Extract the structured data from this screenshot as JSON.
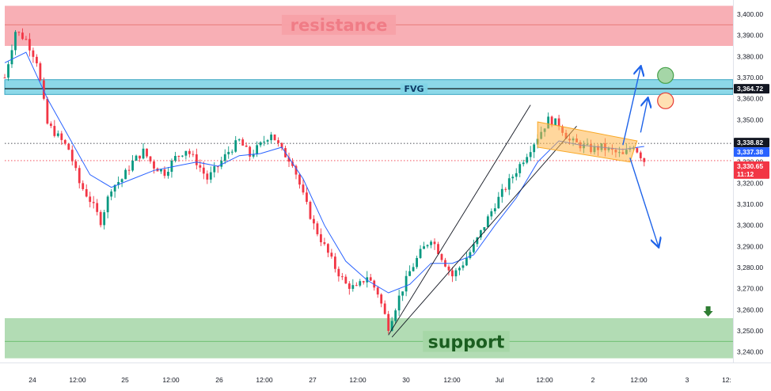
{
  "chart_data": {
    "type": "candlestick",
    "y_ticks": [
      3240,
      3250,
      3260,
      3270,
      3280,
      3290,
      3300,
      3310,
      3320,
      3330,
      3340,
      3350,
      3360,
      3370,
      3380,
      3390,
      3400
    ],
    "ylim": [
      3235,
      3406
    ],
    "x_ticks": [
      "24",
      "12:00",
      "25",
      "12:00",
      "26",
      "12:00",
      "27",
      "12:00",
      "30",
      "12:00",
      "Jul",
      "12:00",
      "2",
      "12:00",
      "3",
      "12:"
    ],
    "price_badges": [
      {
        "value": "3,364.72",
        "color": "#131722",
        "text_color": "#ffffff"
      },
      {
        "value": "3,338.82",
        "color": "#131722",
        "text_color": "#ffffff"
      },
      {
        "value": "3,337.38",
        "color": "#2962ff",
        "text_color": "#ffffff"
      },
      {
        "value": "3,330.65",
        "sub": "11:12",
        "color": "#f23645",
        "text_color": "#ffffff"
      }
    ],
    "zones": [
      {
        "label": "resistance",
        "from": 3385,
        "to": 3404,
        "mid": 3395,
        "color": "#f7a1a8",
        "text_color": "#f07c86"
      },
      {
        "label": "FVG",
        "from": 3362,
        "to": 3369,
        "mid": 3364.72,
        "color": "#7fd4e6",
        "text_color": "#0d3b66"
      },
      {
        "label": "support",
        "from": 3237,
        "to": 3256,
        "mid": 3245,
        "color": "#a5d6a7",
        "text_color": "#1b5e20"
      }
    ],
    "price_path": [
      [
        0,
        3370
      ],
      [
        3,
        3392
      ],
      [
        6,
        3388
      ],
      [
        9,
        3378
      ],
      [
        12,
        3348
      ],
      [
        15,
        3342
      ],
      [
        18,
        3336
      ],
      [
        21,
        3320
      ],
      [
        24,
        3312
      ],
      [
        27,
        3302
      ],
      [
        30,
        3318
      ],
      [
        33,
        3322
      ],
      [
        36,
        3330
      ],
      [
        39,
        3335
      ],
      [
        42,
        3328
      ],
      [
        45,
        3325
      ],
      [
        48,
        3332
      ],
      [
        51,
        3336
      ],
      [
        54,
        3330
      ],
      [
        57,
        3322
      ],
      [
        60,
        3328
      ],
      [
        63,
        3335
      ],
      [
        66,
        3340
      ],
      [
        69,
        3333
      ],
      [
        72,
        3338
      ],
      [
        75,
        3344
      ],
      [
        78,
        3335
      ],
      [
        81,
        3330
      ],
      [
        84,
        3314
      ],
      [
        87,
        3300
      ],
      [
        90,
        3290
      ],
      [
        93,
        3280
      ],
      [
        96,
        3272
      ],
      [
        99,
        3270
      ],
      [
        102,
        3276
      ],
      [
        105,
        3268
      ],
      [
        108,
        3252
      ],
      [
        111,
        3266
      ],
      [
        114,
        3278
      ],
      [
        117,
        3287
      ],
      [
        120,
        3294
      ],
      [
        123,
        3285
      ],
      [
        126,
        3276
      ],
      [
        129,
        3282
      ],
      [
        132,
        3290
      ],
      [
        135,
        3300
      ],
      [
        138,
        3310
      ],
      [
        141,
        3318
      ],
      [
        144,
        3326
      ],
      [
        147,
        3334
      ],
      [
        150,
        3342
      ],
      [
        153,
        3350
      ],
      [
        156,
        3348
      ],
      [
        159,
        3340
      ],
      [
        162,
        3338
      ],
      [
        165,
        3336
      ],
      [
        168,
        3337
      ],
      [
        171,
        3335
      ],
      [
        174,
        3333
      ],
      [
        177,
        3338
      ],
      [
        180,
        3330.65
      ]
    ],
    "ma_path": [
      [
        0,
        3377
      ],
      [
        6,
        3382
      ],
      [
        12,
        3360
      ],
      [
        18,
        3342
      ],
      [
        24,
        3324
      ],
      [
        30,
        3318
      ],
      [
        36,
        3322
      ],
      [
        42,
        3326
      ],
      [
        48,
        3328
      ],
      [
        54,
        3330
      ],
      [
        60,
        3328
      ],
      [
        66,
        3333
      ],
      [
        72,
        3334
      ],
      [
        78,
        3337
      ],
      [
        84,
        3322
      ],
      [
        90,
        3300
      ],
      [
        96,
        3283
      ],
      [
        102,
        3274
      ],
      [
        108,
        3268
      ],
      [
        114,
        3272
      ],
      [
        120,
        3282
      ],
      [
        126,
        3282
      ],
      [
        132,
        3286
      ],
      [
        138,
        3300
      ],
      [
        144,
        3313
      ],
      [
        150,
        3330
      ],
      [
        156,
        3340
      ],
      [
        162,
        3338
      ],
      [
        168,
        3337
      ],
      [
        174,
        3336
      ],
      [
        180,
        3337.38
      ]
    ],
    "channel_lines": [
      [
        [
          108,
          3248
        ],
        [
          148,
          3357
        ]
      ],
      [
        [
          109,
          3247
        ],
        [
          161,
          3347
        ]
      ]
    ],
    "flag": [
      [
        150,
        3349
      ],
      [
        178,
        3340
      ],
      [
        176,
        3330
      ],
      [
        150,
        3337
      ]
    ],
    "projections": [
      {
        "points": [
          [
            174,
            3338
          ],
          [
            179,
            3375
          ]
        ],
        "color": "#1e63e9"
      },
      {
        "points": [
          [
            179,
            3344
          ],
          [
            181,
            3360
          ]
        ],
        "color": "#1e63e9"
      },
      {
        "points": [
          [
            176,
            3332
          ],
          [
            184,
            3290
          ]
        ],
        "color": "#1e63e9"
      }
    ],
    "markers": [
      {
        "x": 186,
        "y": 3371,
        "color": "#a5d6a7",
        "stroke": "#43a047"
      },
      {
        "x": 186,
        "y": 3359,
        "color": "#ffe0b2",
        "stroke": "#e53935"
      }
    ],
    "dotted_lines": [
      3338.82,
      3330.65
    ],
    "arrow_marker": {
      "x": 198,
      "y": 3259,
      "color": "#2e7d32"
    }
  }
}
